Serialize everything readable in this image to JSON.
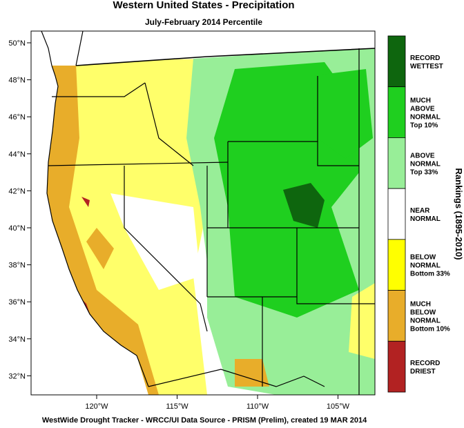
{
  "title": "Western United States - Precipitation",
  "subtitle": "July-February 2014 Percentile",
  "lat_labels": [
    "50°N",
    "48°N",
    "46°N",
    "44°N",
    "42°N",
    "40°N",
    "38°N",
    "36°N",
    "34°N",
    "32°N"
  ],
  "lon_labels": [
    "120°W",
    "115°W",
    "110°W",
    "105°W"
  ],
  "legend": {
    "title": "Rankings (1895-2010)",
    "items": [
      {
        "lines": [
          "RECORD",
          "WETTEST"
        ],
        "color": "#0e660e"
      },
      {
        "lines": [
          "MUCH",
          "ABOVE",
          "NORMAL",
          "Top 10%"
        ],
        "color": "#1fcf1f"
      },
      {
        "lines": [
          "ABOVE",
          "NORMAL",
          "Top 33%"
        ],
        "color": "#98ee98"
      },
      {
        "lines": [
          "NEAR",
          "NORMAL"
        ],
        "color": "#ffffff"
      },
      {
        "lines": [
          "BELOW",
          "NORMAL",
          "Bottom 33%"
        ],
        "color": "#ffff00"
      },
      {
        "lines": [
          "MUCH",
          "BELOW",
          "NORMAL",
          "Bottom 10%"
        ],
        "color": "#e8ad2a"
      },
      {
        "lines": [
          "RECORD",
          "DRIEST"
        ],
        "color": "#b22222"
      }
    ]
  },
  "footer": "WestWide Drought Tracker - WRCC/UI  Data Source - PRISM (Prelim), created 19 MAR 2014"
}
